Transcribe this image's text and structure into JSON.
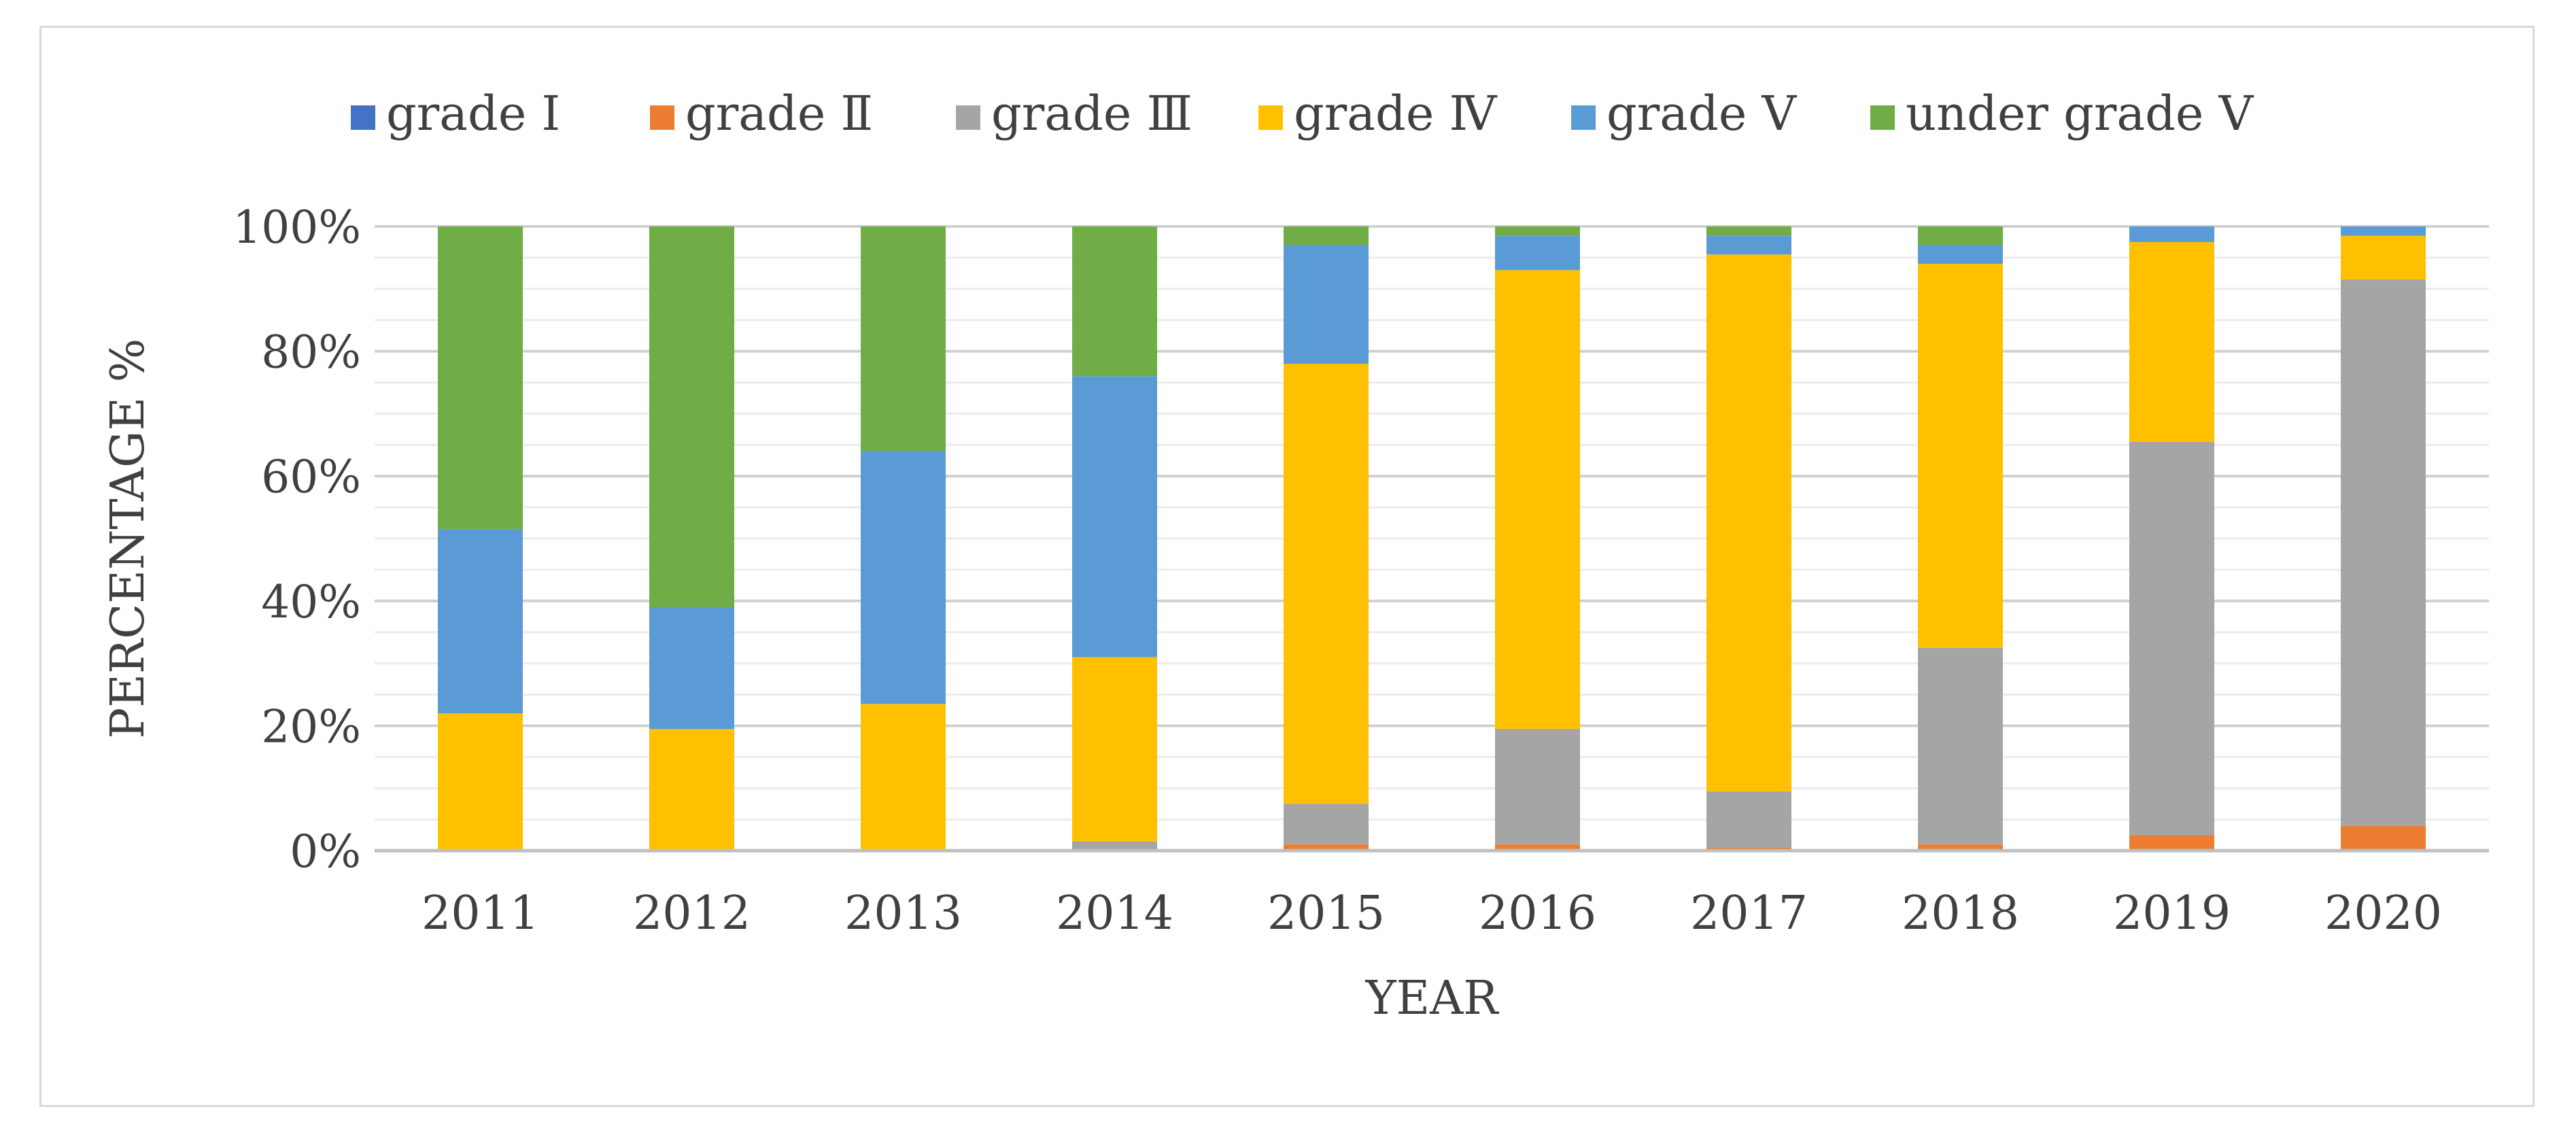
{
  "chart_data": {
    "type": "bar",
    "stacked": true,
    "percent": true,
    "title": "",
    "xlabel": "YEAR",
    "ylabel": "PERCENTAGE %",
    "ylim": [
      0,
      100
    ],
    "yticks": [
      "0%",
      "20%",
      "40%",
      "60%",
      "80%",
      "100%"
    ],
    "legend_position": "top",
    "categories": [
      "2011",
      "2012",
      "2013",
      "2014",
      "2015",
      "2016",
      "2017",
      "2018",
      "2019",
      "2020"
    ],
    "series": [
      {
        "name": "grade Ⅰ",
        "color": "#4472C4",
        "values": [
          0,
          0,
          0,
          0,
          0,
          0,
          0,
          0,
          0,
          0
        ]
      },
      {
        "name": "grade Ⅱ",
        "color": "#ED7D31",
        "values": [
          0,
          0,
          0,
          0,
          1,
          1,
          0.5,
          1,
          2.5,
          4
        ]
      },
      {
        "name": "grade Ⅲ",
        "color": "#A5A5A5",
        "values": [
          0,
          0,
          0,
          1.5,
          6.5,
          18.5,
          9,
          31.5,
          63,
          87.5
        ]
      },
      {
        "name": "grade Ⅳ",
        "color": "#FFC000",
        "values": [
          22,
          19.5,
          23.5,
          29.5,
          70.5,
          73.5,
          86,
          61.5,
          32,
          7
        ]
      },
      {
        "name": "grade Ⅴ",
        "color": "#5B9BD5",
        "values": [
          29.5,
          19.5,
          40.5,
          45,
          19,
          5.5,
          3,
          3,
          2.5,
          1.5
        ]
      },
      {
        "name": "under grade Ⅴ",
        "color": "#70AD47",
        "values": [
          48.5,
          61,
          36,
          24,
          3,
          1.5,
          1.5,
          3,
          0,
          0
        ]
      }
    ]
  }
}
